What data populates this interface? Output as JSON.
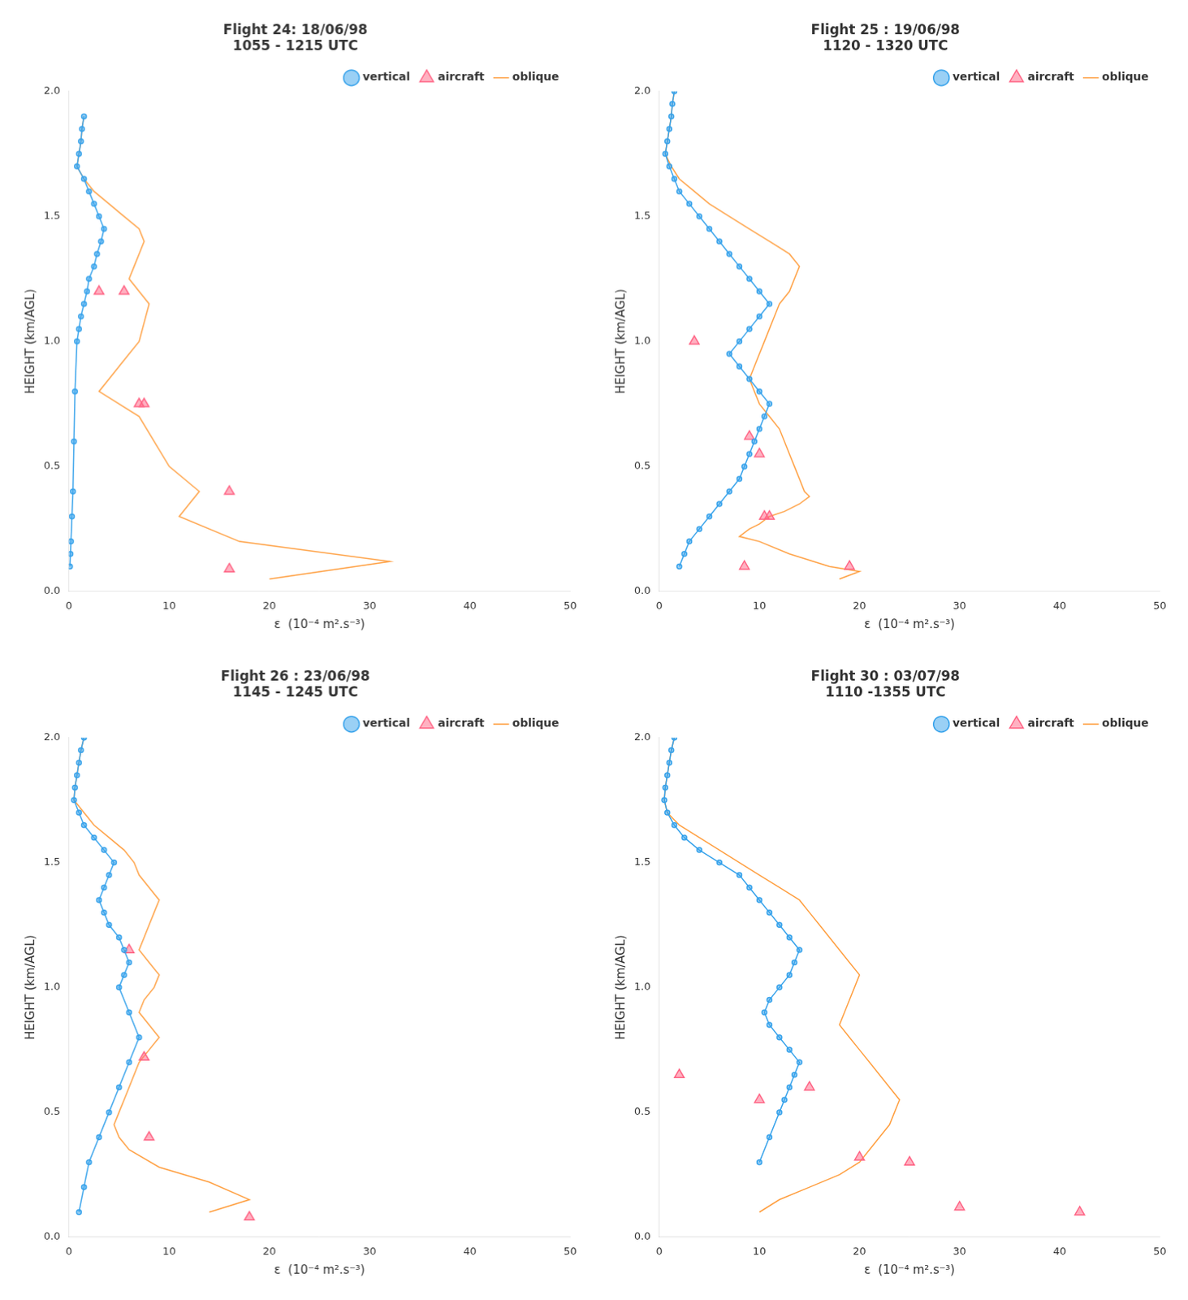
{
  "chart_data": [
    {
      "type": "line",
      "title": "Flight 24: 18/06/98\n1055 - 1215 UTC",
      "xlabel": "ε  (10⁻⁴ m².s⁻³)",
      "ylabel": "HEIGHT (km/AGL)",
      "xlim": [
        0,
        50
      ],
      "xticks": [
        0,
        10,
        20,
        30,
        40,
        50
      ],
      "ylim": [
        0,
        2.0
      ],
      "yticks": [
        {
          "value": 0,
          "label": "0.0"
        },
        0.5,
        {
          "value": 1.0,
          "label": "1.0"
        },
        1.5,
        {
          "value": 2.0,
          "label": "2.0"
        }
      ],
      "grid": false,
      "legend": "upper right",
      "series": [
        {
          "name": "vertical",
          "type": "line",
          "marker": "circle",
          "line_style": "solid",
          "x": [
            1.5,
            1.3,
            1.2,
            1.0,
            0.8,
            1.5,
            2.0,
            2.5,
            3.0,
            3.5,
            3.2,
            2.8,
            2.5,
            2.0,
            1.8,
            1.5,
            1.2,
            1.0,
            0.8,
            0.6,
            0.5,
            0.4,
            0.3,
            0.2,
            0.15,
            0.1
          ],
          "values": [
            1.9,
            1.85,
            1.8,
            1.75,
            1.7,
            1.65,
            1.6,
            1.55,
            1.5,
            1.45,
            1.4,
            1.35,
            1.3,
            1.25,
            1.2,
            1.15,
            1.1,
            1.05,
            1.0,
            0.8,
            0.6,
            0.4,
            0.3,
            0.2,
            0.15,
            0.1
          ]
        },
        {
          "name": "aircraft",
          "type": "scatter",
          "marker": "triangle",
          "line_style": "none",
          "x": [
            3.0,
            5.5,
            7.0,
            7.5,
            16.0,
            16.0
          ],
          "values": [
            1.2,
            1.2,
            0.75,
            0.75,
            0.4,
            0.09
          ]
        },
        {
          "name": "oblique",
          "type": "line",
          "marker": "none",
          "line_style": "solid",
          "x": [
            1.5,
            1.3,
            1.2,
            1.0,
            0.8,
            1.5,
            2.5,
            4.0,
            5.5,
            7.0,
            7.5,
            7.0,
            6.5,
            6.0,
            7.0,
            8.0,
            7.0,
            6.0,
            5.0,
            4.0,
            3.0,
            5.0,
            7.0,
            10.0,
            13.0,
            12.0,
            11.0,
            17.0,
            32.0,
            20.0
          ],
          "values": [
            1.9,
            1.85,
            1.8,
            1.75,
            1.7,
            1.65,
            1.6,
            1.55,
            1.5,
            1.45,
            1.4,
            1.35,
            1.3,
            1.25,
            1.2,
            1.15,
            1.0,
            0.95,
            0.9,
            0.85,
            0.8,
            0.75,
            0.7,
            0.5,
            0.4,
            0.35,
            0.3,
            0.2,
            0.12,
            0.05
          ]
        }
      ]
    },
    {
      "type": "line",
      "title": "Flight 25 : 19/06/98\n1120 - 1320 UTC",
      "xlabel": "ε  (10⁻⁴ m².s⁻³)",
      "ylabel": "HEIGHT (km/AGL)",
      "xlim": [
        0,
        50
      ],
      "xticks": [
        0,
        10,
        20,
        30,
        40,
        50
      ],
      "ylim": [
        0,
        2.0
      ],
      "yticks": [
        {
          "value": 0,
          "label": "0.0"
        },
        0.5,
        {
          "value": 1.0,
          "label": "1.0"
        },
        1.5,
        {
          "value": 2.0,
          "label": "2.0"
        }
      ],
      "grid": false,
      "legend": "upper right",
      "series": [
        {
          "name": "vertical",
          "type": "line",
          "marker": "circle",
          "line_style": "solid",
          "x": [
            1.5,
            1.3,
            1.2,
            1.0,
            0.8,
            0.6,
            1.0,
            1.5,
            2.0,
            3.0,
            4.0,
            5.0,
            6.0,
            7.0,
            8.0,
            9.0,
            10.0,
            11.0,
            10.0,
            9.0,
            8.0,
            7.0,
            8.0,
            9.0,
            10.0,
            11.0,
            10.5,
            10.0,
            9.5,
            9.0,
            8.5,
            8.0,
            7.0,
            6.0,
            5.0,
            4.0,
            3.0,
            2.5,
            2.0
          ],
          "values": [
            2.0,
            1.95,
            1.9,
            1.85,
            1.8,
            1.75,
            1.7,
            1.65,
            1.6,
            1.55,
            1.5,
            1.45,
            1.4,
            1.35,
            1.3,
            1.25,
            1.2,
            1.15,
            1.1,
            1.05,
            1.0,
            0.95,
            0.9,
            0.85,
            0.8,
            0.75,
            0.7,
            0.65,
            0.6,
            0.55,
            0.5,
            0.45,
            0.4,
            0.35,
            0.3,
            0.25,
            0.2,
            0.15,
            0.1
          ]
        },
        {
          "name": "aircraft",
          "type": "scatter",
          "marker": "triangle",
          "line_style": "none",
          "x": [
            3.5,
            9.0,
            10.0,
            10.5,
            11.0,
            8.5,
            19.0
          ],
          "values": [
            1.0,
            0.62,
            0.55,
            0.3,
            0.3,
            0.1,
            0.1
          ]
        },
        {
          "name": "oblique",
          "type": "line",
          "marker": "none",
          "line_style": "solid",
          "x": [
            1.5,
            1.3,
            1.2,
            1.0,
            0.8,
            0.6,
            1.2,
            2.0,
            3.5,
            5.0,
            7.0,
            9.0,
            11.0,
            13.0,
            14.0,
            13.5,
            13.0,
            12.0,
            11.5,
            11.0,
            10.5,
            10.0,
            9.5,
            9.0,
            9.5,
            10.0,
            11.0,
            12.0,
            12.5,
            13.0,
            13.5,
            14.0,
            14.5,
            15.0,
            14.0,
            12.5,
            11.0,
            10.0,
            9.0,
            8.0,
            10.0,
            13.0,
            17.0,
            20.0,
            18.0
          ],
          "values": [
            2.0,
            1.95,
            1.9,
            1.85,
            1.8,
            1.75,
            1.7,
            1.65,
            1.6,
            1.55,
            1.5,
            1.45,
            1.4,
            1.35,
            1.3,
            1.25,
            1.2,
            1.15,
            1.1,
            1.05,
            1.0,
            0.95,
            0.9,
            0.85,
            0.8,
            0.75,
            0.7,
            0.65,
            0.6,
            0.55,
            0.5,
            0.45,
            0.4,
            0.38,
            0.35,
            0.32,
            0.3,
            0.27,
            0.25,
            0.22,
            0.2,
            0.15,
            0.1,
            0.08,
            0.05
          ]
        }
      ]
    },
    {
      "type": "line",
      "title": "Flight 26 : 23/06/98\n1145 - 1245 UTC",
      "xlabel": "ε  (10⁻⁴ m².s⁻³)",
      "ylabel": "HEIGHT (km/AGL)",
      "xlim": [
        0,
        50
      ],
      "xticks": [
        0,
        10,
        20,
        30,
        40,
        50
      ],
      "ylim": [
        0,
        2.0
      ],
      "yticks": [
        {
          "value": 0,
          "label": "0.0"
        },
        0.5,
        {
          "value": 1.0,
          "label": "1.0"
        },
        1.5,
        {
          "value": 2.0,
          "label": "2.0"
        }
      ],
      "grid": false,
      "legend": "upper right",
      "series": [
        {
          "name": "vertical",
          "type": "line",
          "marker": "circle",
          "line_style": "solid",
          "x": [
            1.5,
            1.2,
            1.0,
            0.8,
            0.6,
            0.5,
            1.0,
            1.5,
            2.5,
            3.5,
            4.5,
            4.0,
            3.5,
            3.0,
            3.5,
            4.0,
            5.0,
            5.5,
            6.0,
            5.5,
            5.0,
            6.0,
            7.0,
            6.0,
            5.0,
            4.0,
            3.0,
            2.0,
            1.5,
            1.0
          ],
          "values": [
            2.0,
            1.95,
            1.9,
            1.85,
            1.8,
            1.75,
            1.7,
            1.65,
            1.6,
            1.55,
            1.5,
            1.45,
            1.4,
            1.35,
            1.3,
            1.25,
            1.2,
            1.15,
            1.1,
            1.05,
            1.0,
            0.9,
            0.8,
            0.7,
            0.6,
            0.5,
            0.4,
            0.3,
            0.2,
            0.1
          ]
        },
        {
          "name": "aircraft",
          "type": "scatter",
          "marker": "triangle",
          "line_style": "none",
          "x": [
            6.0,
            7.5,
            8.0,
            18.0
          ],
          "values": [
            1.15,
            0.72,
            0.4,
            0.08
          ]
        },
        {
          "name": "oblique",
          "type": "line",
          "marker": "none",
          "line_style": "solid",
          "x": [
            1.5,
            1.2,
            1.0,
            0.8,
            0.6,
            0.5,
            1.5,
            2.5,
            4.0,
            5.5,
            6.5,
            7.0,
            8.0,
            9.0,
            8.5,
            8.0,
            7.5,
            7.0,
            8.0,
            9.0,
            8.5,
            7.5,
            7.0,
            8.0,
            9.0,
            8.0,
            7.0,
            6.5,
            6.0,
            5.5,
            5.0,
            4.5,
            5.0,
            6.0,
            9.0,
            14.0,
            18.0,
            14.0
          ],
          "values": [
            2.0,
            1.95,
            1.9,
            1.85,
            1.8,
            1.75,
            1.7,
            1.65,
            1.6,
            1.55,
            1.5,
            1.45,
            1.4,
            1.35,
            1.3,
            1.25,
            1.2,
            1.15,
            1.1,
            1.05,
            1.0,
            0.95,
            0.9,
            0.85,
            0.8,
            0.75,
            0.7,
            0.65,
            0.6,
            0.55,
            0.5,
            0.45,
            0.4,
            0.35,
            0.28,
            0.22,
            0.15,
            0.1
          ]
        }
      ]
    },
    {
      "type": "line",
      "title": "Flight 30 : 03/07/98\n1110 -1355 UTC",
      "xlabel": "ε  (10⁻⁴ m².s⁻³)",
      "ylabel": "HEIGHT (km/AGL)",
      "xlim": [
        0,
        50
      ],
      "xticks": [
        0,
        10,
        20,
        30,
        40,
        50
      ],
      "ylim": [
        0,
        2.0
      ],
      "yticks": [
        {
          "value": 0,
          "label": "0.0"
        },
        0.5,
        {
          "value": 1.0,
          "label": "1.0"
        },
        1.5,
        {
          "value": 2.0,
          "label": "2.0"
        }
      ],
      "grid": false,
      "legend": "upper right",
      "series": [
        {
          "name": "vertical",
          "type": "line",
          "marker": "circle",
          "line_style": "solid",
          "x": [
            1.5,
            1.2,
            1.0,
            0.8,
            0.6,
            0.5,
            0.8,
            1.5,
            2.5,
            4.0,
            6.0,
            8.0,
            9.0,
            10.0,
            11.0,
            12.0,
            13.0,
            14.0,
            13.5,
            13.0,
            12.0,
            11.0,
            10.5,
            11.0,
            12.0,
            13.0,
            14.0,
            13.5,
            13.0,
            12.5,
            12.0,
            11.0,
            10.0
          ],
          "values": [
            2.0,
            1.95,
            1.9,
            1.85,
            1.8,
            1.75,
            1.7,
            1.65,
            1.6,
            1.55,
            1.5,
            1.45,
            1.4,
            1.35,
            1.3,
            1.25,
            1.2,
            1.15,
            1.1,
            1.05,
            1.0,
            0.95,
            0.9,
            0.85,
            0.8,
            0.75,
            0.7,
            0.65,
            0.6,
            0.55,
            0.5,
            0.4,
            0.3
          ]
        },
        {
          "name": "aircraft",
          "type": "scatter",
          "marker": "triangle",
          "line_style": "none",
          "x": [
            2.0,
            10.0,
            15.0,
            20.0,
            25.0,
            30.0,
            42.0
          ],
          "values": [
            0.65,
            0.55,
            0.6,
            0.32,
            0.3,
            0.12,
            0.1
          ]
        },
        {
          "name": "oblique",
          "type": "line",
          "marker": "none",
          "line_style": "solid",
          "x": [
            1.5,
            1.2,
            1.0,
            0.8,
            0.6,
            0.5,
            0.8,
            2.0,
            4.0,
            6.0,
            8.0,
            10.0,
            12.0,
            14.0,
            15.0,
            16.0,
            17.0,
            18.0,
            19.0,
            20.0,
            19.5,
            19.0,
            18.5,
            18.0,
            19.0,
            20.0,
            21.0,
            22.0,
            23.0,
            24.0,
            23.5,
            23.0,
            22.0,
            21.0,
            20.0,
            18.0,
            15.0,
            12.0,
            10.0
          ],
          "values": [
            2.0,
            1.95,
            1.9,
            1.85,
            1.8,
            1.75,
            1.7,
            1.65,
            1.6,
            1.55,
            1.5,
            1.45,
            1.4,
            1.35,
            1.3,
            1.25,
            1.2,
            1.15,
            1.1,
            1.05,
            1.0,
            0.95,
            0.9,
            0.85,
            0.8,
            0.75,
            0.7,
            0.65,
            0.6,
            0.55,
            0.5,
            0.45,
            0.4,
            0.35,
            0.3,
            0.25,
            0.2,
            0.15,
            0.1
          ]
        }
      ]
    }
  ]
}
